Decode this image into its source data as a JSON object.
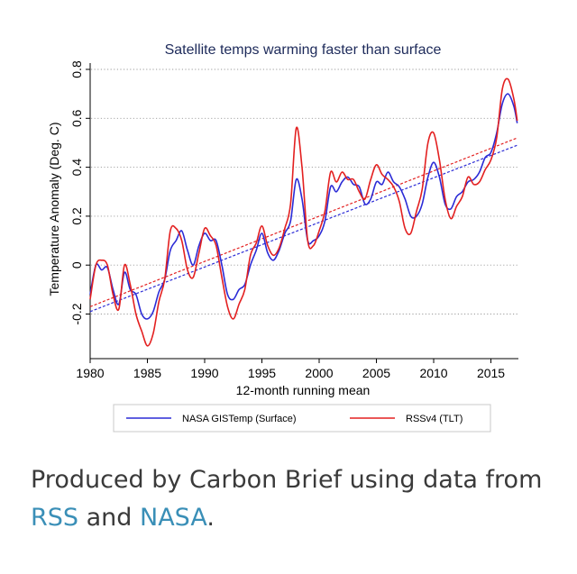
{
  "chart_data": {
    "type": "line",
    "title": "Satellite temps warming faster than surface",
    "xlabel": "12-month running mean",
    "ylabel": "Temperature Anomaly (Deg. C)",
    "xlim": [
      1980,
      2017.4
    ],
    "ylim": [
      -0.35,
      0.8
    ],
    "x_ticks": [
      1980,
      1985,
      1990,
      1995,
      2000,
      2005,
      2010,
      2015
    ],
    "y_ticks": [
      -0.2,
      0,
      0.2,
      0.4,
      0.6,
      0.8
    ],
    "y_tick_labels": [
      "-0.2",
      "0",
      "0.2",
      "0.4",
      "0.6",
      "0.8"
    ],
    "grid": "horizontal dotted",
    "legend_position": "bottom",
    "series": [
      {
        "name": "NASA GISTemp (Surface)",
        "color": "#2b2bd6",
        "x": [
          1980.0,
          1980.5,
          1981.0,
          1981.5,
          1982.0,
          1982.5,
          1983.0,
          1983.5,
          1984.0,
          1984.5,
          1985.0,
          1985.5,
          1986.0,
          1986.5,
          1987.0,
          1987.5,
          1988.0,
          1988.5,
          1989.0,
          1989.5,
          1990.0,
          1990.5,
          1991.0,
          1991.5,
          1992.0,
          1992.5,
          1993.0,
          1993.5,
          1994.0,
          1994.5,
          1995.0,
          1995.5,
          1996.0,
          1996.5,
          1997.0,
          1997.5,
          1998.0,
          1998.5,
          1999.0,
          1999.5,
          2000.0,
          2000.5,
          2001.0,
          2001.5,
          2002.0,
          2002.5,
          2003.0,
          2003.5,
          2004.0,
          2004.5,
          2005.0,
          2005.5,
          2006.0,
          2006.5,
          2007.0,
          2007.5,
          2008.0,
          2008.5,
          2009.0,
          2009.5,
          2010.0,
          2010.5,
          2011.0,
          2011.5,
          2012.0,
          2012.5,
          2013.0,
          2013.5,
          2014.0,
          2014.5,
          2015.0,
          2015.5,
          2016.0,
          2016.5,
          2017.0,
          2017.3
        ],
        "values": [
          -0.12,
          0.0,
          -0.02,
          -0.01,
          -0.1,
          -0.16,
          -0.03,
          -0.1,
          -0.12,
          -0.2,
          -0.22,
          -0.19,
          -0.11,
          -0.06,
          0.06,
          0.1,
          0.14,
          0.06,
          0.0,
          0.08,
          0.13,
          0.1,
          0.1,
          0.0,
          -0.12,
          -0.14,
          -0.1,
          -0.08,
          0.0,
          0.06,
          0.13,
          0.05,
          0.02,
          0.06,
          0.13,
          0.18,
          0.35,
          0.27,
          0.1,
          0.1,
          0.12,
          0.18,
          0.32,
          0.3,
          0.34,
          0.36,
          0.33,
          0.32,
          0.25,
          0.27,
          0.34,
          0.33,
          0.38,
          0.34,
          0.32,
          0.27,
          0.2,
          0.2,
          0.25,
          0.36,
          0.42,
          0.36,
          0.25,
          0.23,
          0.28,
          0.3,
          0.34,
          0.35,
          0.38,
          0.44,
          0.46,
          0.54,
          0.66,
          0.7,
          0.65,
          0.58
        ]
      },
      {
        "name": "RSSv4 (TLT)",
        "color": "#e32020",
        "x": [
          1980.0,
          1980.5,
          1981.0,
          1981.5,
          1982.0,
          1982.5,
          1983.0,
          1983.5,
          1984.0,
          1984.5,
          1985.0,
          1985.5,
          1986.0,
          1986.5,
          1987.0,
          1987.5,
          1988.0,
          1988.5,
          1989.0,
          1989.5,
          1990.0,
          1990.5,
          1991.0,
          1991.5,
          1992.0,
          1992.5,
          1993.0,
          1993.5,
          1994.0,
          1994.5,
          1995.0,
          1995.5,
          1996.0,
          1996.5,
          1997.0,
          1997.5,
          1998.0,
          1998.5,
          1999.0,
          1999.5,
          2000.0,
          2000.5,
          2001.0,
          2001.5,
          2002.0,
          2002.5,
          2003.0,
          2003.5,
          2004.0,
          2004.5,
          2005.0,
          2005.5,
          2006.0,
          2006.5,
          2007.0,
          2007.5,
          2008.0,
          2008.5,
          2009.0,
          2009.5,
          2010.0,
          2010.5,
          2011.0,
          2011.5,
          2012.0,
          2012.5,
          2013.0,
          2013.5,
          2014.0,
          2014.5,
          2015.0,
          2015.5,
          2016.0,
          2016.5,
          2017.0,
          2017.3
        ],
        "values": [
          -0.14,
          0.0,
          0.02,
          0.0,
          -0.12,
          -0.18,
          0.0,
          -0.08,
          -0.2,
          -0.27,
          -0.33,
          -0.28,
          -0.15,
          -0.06,
          0.14,
          0.15,
          0.1,
          -0.02,
          -0.05,
          0.05,
          0.15,
          0.12,
          0.08,
          -0.05,
          -0.17,
          -0.22,
          -0.16,
          -0.1,
          0.04,
          0.09,
          0.16,
          0.08,
          0.04,
          0.07,
          0.15,
          0.25,
          0.56,
          0.4,
          0.1,
          0.08,
          0.14,
          0.22,
          0.38,
          0.34,
          0.38,
          0.35,
          0.35,
          0.3,
          0.27,
          0.35,
          0.41,
          0.37,
          0.35,
          0.32,
          0.26,
          0.15,
          0.13,
          0.22,
          0.31,
          0.5,
          0.54,
          0.43,
          0.27,
          0.19,
          0.24,
          0.28,
          0.36,
          0.33,
          0.34,
          0.39,
          0.43,
          0.52,
          0.72,
          0.76,
          0.68,
          0.59
        ]
      }
    ],
    "trends": [
      {
        "series": "NASA GISTemp (Surface)",
        "color": "#2b2bd6",
        "x": [
          1980,
          2017.3
        ],
        "values": [
          -0.19,
          0.49
        ]
      },
      {
        "series": "RSSv4 (TLT)",
        "color": "#e32020",
        "x": [
          1980,
          2017.3
        ],
        "values": [
          -0.17,
          0.52
        ]
      }
    ]
  },
  "caption": {
    "text_before": "Produced by Carbon Brief using data from ",
    "link1": "RSS",
    "text_middle": " and ",
    "link2": "NASA",
    "text_after": ".",
    "link_color": "#3a8fb7"
  }
}
